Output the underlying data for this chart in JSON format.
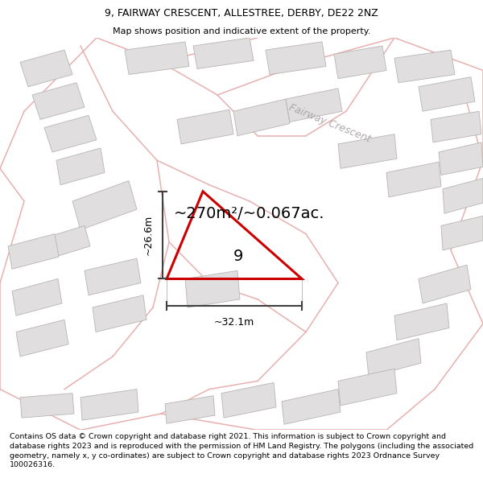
{
  "title": "9, FAIRWAY CRESCENT, ALLESTREE, DERBY, DE22 2NZ",
  "subtitle": "Map shows position and indicative extent of the property.",
  "area_label": "~270m²/~0.067ac.",
  "plot_number": "9",
  "street_label": "Fairway Crescent",
  "dim_width_label": "~32.1m",
  "dim_height_label": "~26.6m",
  "footer": "Contains OS data © Crown copyright and database right 2021. This information is subject to Crown copyright and database rights 2023 and is reproduced with the permission of HM Land Registry. The polygons (including the associated geometry, namely x, y co-ordinates) are subject to Crown copyright and database rights 2023 Ordnance Survey 100026316.",
  "bg_color": "#ffffff",
  "map_bg": "#f5f2f2",
  "building_fill": "#e0dede",
  "building_edge": "#b8b4b4",
  "road_color": "#e8b0b0",
  "plot_color": "#cc0000",
  "dim_color": "#404040",
  "figsize": [
    6.0,
    6.25
  ],
  "dpi": 100,
  "title_fs": 9,
  "subtitle_fs": 8,
  "area_fs": 14,
  "footer_fs": 6.8
}
